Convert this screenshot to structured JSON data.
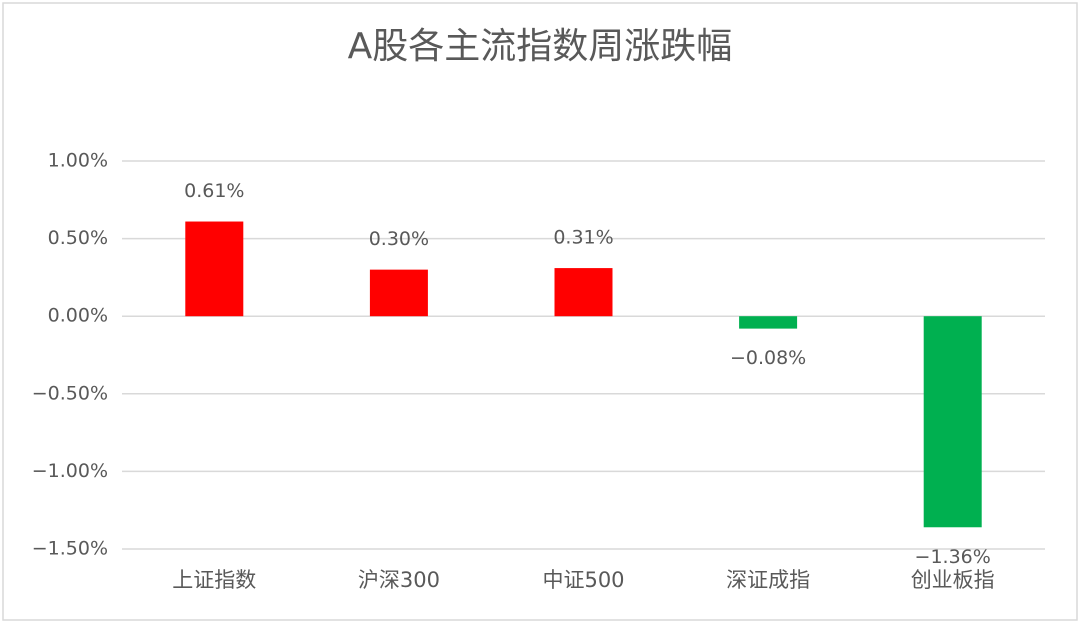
{
  "chart_data": {
    "type": "bar",
    "title": "A股各主流指数周涨跌幅",
    "categories": [
      "上证指数",
      "沪深300",
      "中证500",
      "深证成指",
      "创业板指"
    ],
    "values": [
      0.61,
      0.3,
      0.31,
      -0.08,
      -1.36
    ],
    "value_labels": [
      "0.61%",
      "0.30%",
      "0.31%",
      "−0.08%",
      "−1.36%"
    ],
    "colors": [
      "#ff0000",
      "#ff0000",
      "#ff0000",
      "#00b050",
      "#00b050"
    ],
    "ylim": [
      -1.5,
      1.0
    ],
    "yticks": [
      {
        "value": -1.5,
        "label": "−1.50%"
      },
      {
        "value": -1.0,
        "label": "−1.00%"
      },
      {
        "value": -0.5,
        "label": "−0.50%"
      },
      {
        "value": 0,
        "label": "0.00%"
      },
      {
        "value": 0.5,
        "label": "0.50%"
      },
      {
        "value": 1.0,
        "label": "1.00%"
      }
    ],
    "grid": true
  }
}
